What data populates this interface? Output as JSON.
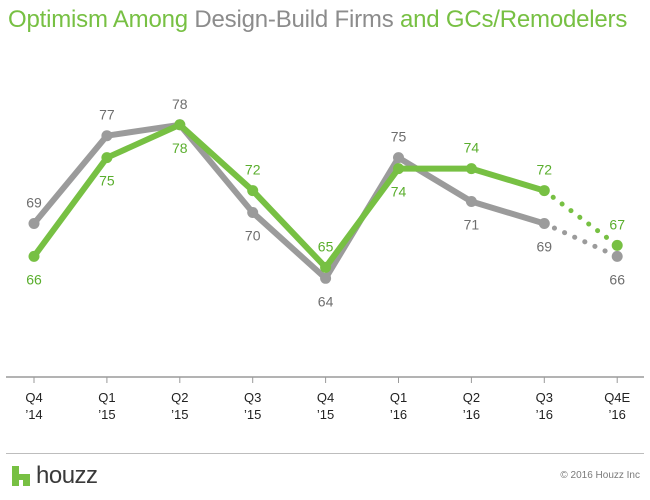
{
  "title_parts": [
    {
      "text": "Optimism Among ",
      "color": "#77c043"
    },
    {
      "text": "Design-Build Firms",
      "color": "#8c8c8c"
    },
    {
      "text": " and GCs/Remodelers",
      "color": "#77c043"
    }
  ],
  "footer": {
    "logo_text": "houzz",
    "copyright": "© 2016 Houzz Inc"
  },
  "colors": {
    "green": "#77c043",
    "gray": "#9b9b9b",
    "green_label": "#5aae2d",
    "gray_label": "#6e6e6e",
    "logo_green": "#77c043"
  },
  "chart_data": {
    "type": "line",
    "categories": [
      [
        "Q4",
        "’14"
      ],
      [
        "Q1",
        "’15"
      ],
      [
        "Q2",
        "’15"
      ],
      [
        "Q3",
        "’15"
      ],
      [
        "Q4",
        "’15"
      ],
      [
        "Q1",
        "’16"
      ],
      [
        "Q2",
        "’16"
      ],
      [
        "Q3",
        "’16"
      ],
      [
        "Q4E",
        "’16"
      ]
    ],
    "series": [
      {
        "key": "design_build",
        "color": "#9b9b9b",
        "label_color": "#6e6e6e",
        "values": [
          69,
          77,
          78,
          70,
          64,
          75,
          71,
          69,
          66
        ],
        "label_pos": [
          "above",
          "above",
          "above",
          "below",
          "below",
          "above",
          "below",
          "below",
          "below"
        ],
        "estimate_from_index": 7
      },
      {
        "key": "gcs_remodelers",
        "color": "#77c043",
        "label_color": "#5aae2d",
        "values": [
          66,
          75,
          78,
          72,
          65,
          74,
          74,
          72,
          67
        ],
        "label_pos": [
          "below",
          "below",
          "below",
          "above",
          "above",
          "below",
          "above",
          "above",
          "above"
        ],
        "estimate_from_index": 7
      }
    ],
    "ylim": [
      55,
      85
    ],
    "grid": false,
    "legend": "none"
  }
}
